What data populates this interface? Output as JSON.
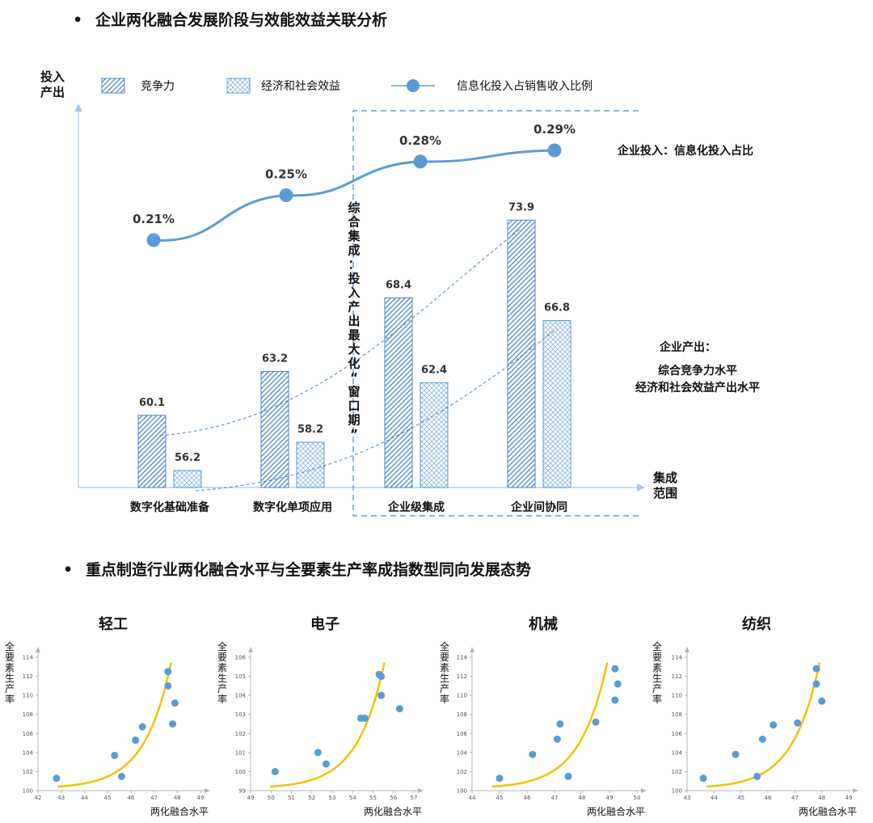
{
  "section1": {
    "bullet": "•",
    "title": "企业两化融合发展阶段与效能效益关联分析"
  },
  "section2": {
    "bullet": "•",
    "title": "重点制造行业两化融合水平与全要素生产率成指数型同向发展态势"
  },
  "chart_data": [
    {
      "type": "bar",
      "title": "",
      "xlabel": "集成范围",
      "ylabel": "投入产出",
      "categories": [
        "数字化基础准备",
        "数字化单项应用",
        "企业级集成",
        "企业间协同"
      ],
      "series": [
        {
          "name": "竞争力",
          "values": [
            60.1,
            63.2,
            68.4,
            73.9
          ],
          "color": "#4a86c8",
          "pattern": "diagonal-hatch"
        },
        {
          "name": "经济和社会效益",
          "values": [
            56.2,
            58.2,
            62.4,
            66.8
          ],
          "color": "#5b9bd5",
          "pattern": "crosshatch"
        },
        {
          "name": "信息化投入占销售收入比例",
          "type": "line",
          "values": [
            0.21,
            0.25,
            0.28,
            0.29
          ],
          "labels": [
            "0.21%",
            "0.25%",
            "0.28%",
            "0.29%"
          ],
          "color": "#5b9bd5"
        }
      ],
      "value_labels": [
        "60.1",
        "56.2",
        "63.2",
        "58.2",
        "68.4",
        "62.4",
        "73.9",
        "66.8"
      ],
      "annotations": {
        "window": "综合集成：投入产出最大化“窗口期”",
        "input_label": "企业投入：信息化投入占比",
        "output_title": "企业产出：",
        "output_line1": "综合竞争力水平",
        "output_line2": "经济和社会效益产出水平"
      },
      "legend": "top",
      "grid": false
    },
    {
      "type": "scatter",
      "title": "轻工",
      "xlabel": "两化融合水平",
      "ylabel": "全要素生产率",
      "xlim": [
        42,
        49
      ],
      "ylim": [
        100,
        114
      ],
      "xticks": [
        "42",
        "43",
        "44",
        "45",
        "46",
        "47",
        "48",
        "49"
      ],
      "yticks": [
        "100",
        "102",
        "104",
        "106",
        "108",
        "110",
        "112",
        "114"
      ],
      "points": [
        [
          42.8,
          101.3
        ],
        [
          45.3,
          103.7
        ],
        [
          45.6,
          101.5
        ],
        [
          46.2,
          105.3
        ],
        [
          46.5,
          106.7
        ],
        [
          47.6,
          112.5
        ],
        [
          47.6,
          111.0
        ],
        [
          47.8,
          107.0
        ],
        [
          47.9,
          109.2
        ]
      ],
      "trend": "exponential",
      "trend_color": "#f2c200",
      "point_color": "#5b9bd5"
    },
    {
      "type": "scatter",
      "title": "电子",
      "xlabel": "两化融合水平",
      "ylabel": "全要素生产率",
      "xlim": [
        49,
        57
      ],
      "ylim": [
        99,
        106
      ],
      "xticks": [
        "49",
        "50",
        "51",
        "52",
        "53",
        "54",
        "55",
        "56",
        "57"
      ],
      "yticks": [
        "99",
        "100",
        "101",
        "102",
        "103",
        "104",
        "105",
        "106"
      ],
      "points": [
        [
          50.2,
          100.0
        ],
        [
          52.3,
          101.0
        ],
        [
          52.7,
          100.4
        ],
        [
          54.4,
          102.8
        ],
        [
          54.6,
          102.8
        ],
        [
          55.3,
          105.1
        ],
        [
          55.4,
          105.0
        ],
        [
          55.4,
          104.0
        ],
        [
          56.3,
          103.3
        ]
      ],
      "trend": "exponential",
      "trend_color": "#f2c200",
      "point_color": "#5b9bd5"
    },
    {
      "type": "scatter",
      "title": "机械",
      "xlabel": "两化融合水平",
      "ylabel": "全要素生产率",
      "xlim": [
        44,
        50
      ],
      "ylim": [
        100,
        114
      ],
      "xticks": [
        "44",
        "45",
        "46",
        "47",
        "48",
        "49",
        "50"
      ],
      "yticks": [
        "100",
        "102",
        "104",
        "106",
        "108",
        "110",
        "112",
        "114"
      ],
      "points": [
        [
          45.0,
          101.3
        ],
        [
          46.2,
          103.8
        ],
        [
          47.1,
          105.4
        ],
        [
          47.2,
          107.0
        ],
        [
          47.5,
          101.5
        ],
        [
          48.5,
          107.2
        ],
        [
          49.2,
          112.8
        ],
        [
          49.3,
          111.2
        ],
        [
          49.2,
          109.5
        ]
      ],
      "trend": "exponential",
      "trend_color": "#f2c200",
      "point_color": "#5b9bd5"
    },
    {
      "type": "scatter",
      "title": "纺织",
      "xlabel": "两化融合水平",
      "ylabel": "全要素生产率",
      "xlim": [
        43,
        49
      ],
      "ylim": [
        100,
        114
      ],
      "xticks": [
        "43",
        "44",
        "45",
        "46",
        "47",
        "48",
        "49"
      ],
      "yticks": [
        "100",
        "102",
        "104",
        "106",
        "108",
        "110",
        "112",
        "114"
      ],
      "points": [
        [
          43.6,
          101.3
        ],
        [
          44.8,
          103.8
        ],
        [
          45.6,
          101.5
        ],
        [
          45.8,
          105.4
        ],
        [
          46.2,
          106.9
        ],
        [
          47.1,
          107.1
        ],
        [
          47.8,
          112.8
        ],
        [
          47.8,
          111.2
        ],
        [
          48.0,
          109.4
        ]
      ],
      "trend": "exponential",
      "trend_color": "#f2c200",
      "point_color": "#5b9bd5"
    }
  ]
}
